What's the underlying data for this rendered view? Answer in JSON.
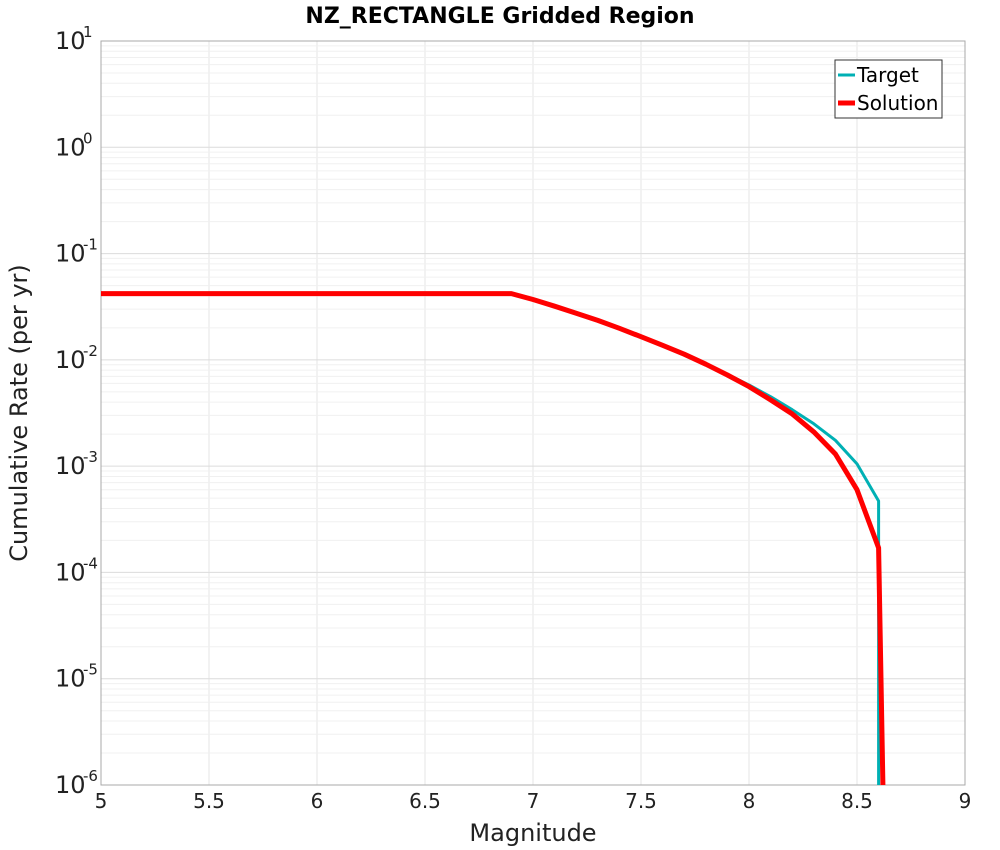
{
  "chart_data": {
    "type": "line",
    "title": "NZ_RECTANGLE Gridded Region",
    "xlabel": "Magnitude",
    "ylabel": "Cumulative Rate (per yr)",
    "xlim": [
      5,
      9
    ],
    "ylim": [
      1e-06,
      10
    ],
    "yscale": "log",
    "grid": true,
    "legend_position": "top-right",
    "x_ticks": [
      "5",
      "5.5",
      "6",
      "6.5",
      "7",
      "7.5",
      "8",
      "8.5",
      "9"
    ],
    "y_ticks": [
      {
        "base": "10",
        "exp": "1"
      },
      {
        "base": "10",
        "exp": "0"
      },
      {
        "base": "10",
        "exp": "-1"
      },
      {
        "base": "10",
        "exp": "-2"
      },
      {
        "base": "10",
        "exp": "-3"
      },
      {
        "base": "10",
        "exp": "-4"
      },
      {
        "base": "10",
        "exp": "-5"
      },
      {
        "base": "10",
        "exp": "-6"
      }
    ],
    "series": [
      {
        "name": "Target",
        "color": "#00b0b4",
        "x": [
          5.0,
          5.5,
          6.0,
          6.5,
          6.9,
          7.0,
          7.1,
          7.2,
          7.3,
          7.4,
          7.5,
          7.6,
          7.7,
          7.8,
          7.9,
          8.0,
          8.1,
          8.2,
          8.3,
          8.4,
          8.5,
          8.6,
          8.6
        ],
        "y": [
          0.042,
          0.042,
          0.042,
          0.042,
          0.042,
          0.037,
          0.032,
          0.0275,
          0.0235,
          0.0198,
          0.0165,
          0.0137,
          0.0113,
          0.0091,
          0.0073,
          0.0058,
          0.0045,
          0.0034,
          0.0025,
          0.00175,
          0.00105,
          0.00047,
          1e-06
        ]
      },
      {
        "name": "Solution",
        "color": "#ff0000",
        "x": [
          5.0,
          5.5,
          6.0,
          6.5,
          6.9,
          7.0,
          7.1,
          7.2,
          7.3,
          7.4,
          7.5,
          7.6,
          7.7,
          7.8,
          7.9,
          8.0,
          8.1,
          8.2,
          8.3,
          8.4,
          8.5,
          8.6,
          8.62
        ],
        "y": [
          0.042,
          0.042,
          0.042,
          0.042,
          0.042,
          0.037,
          0.032,
          0.0275,
          0.0235,
          0.0198,
          0.0165,
          0.0137,
          0.0113,
          0.0091,
          0.0072,
          0.0056,
          0.0042,
          0.0031,
          0.0021,
          0.0013,
          0.0006,
          0.00017,
          1e-06
        ]
      }
    ]
  }
}
